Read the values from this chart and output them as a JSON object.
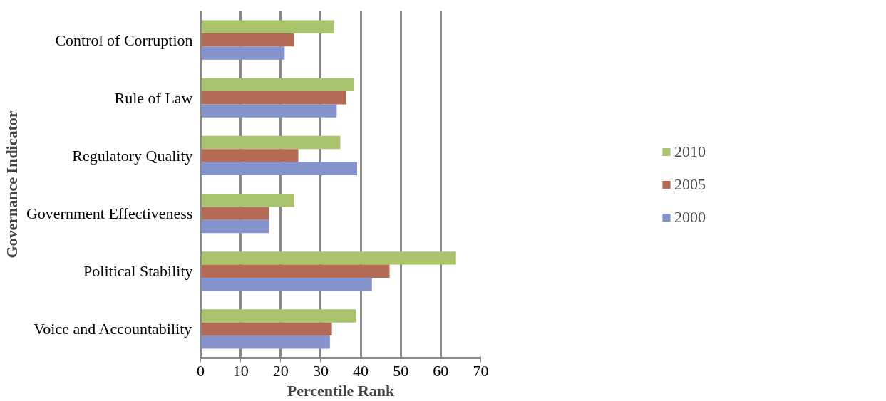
{
  "chart_data": {
    "type": "bar",
    "orientation": "horizontal",
    "xlabel": "Percentile Rank",
    "ylabel": "Governance Indicator",
    "categories": [
      "Control of Corruption",
      "Rule of Law",
      "Regulatory Quality",
      "Government Effectiveness",
      "Political Stability",
      "Voice and Accountability"
    ],
    "series": [
      {
        "name": "2010",
        "color": "#a9c46c",
        "values": [
          33.4,
          38.3,
          34.9,
          23.4,
          63.8,
          38.9
        ]
      },
      {
        "name": "2005",
        "color": "#b56a55",
        "values": [
          23.3,
          36.4,
          24.4,
          17.1,
          47.2,
          32.8
        ]
      },
      {
        "name": "2000",
        "color": "#8593cc",
        "values": [
          21.0,
          34.0,
          39.1,
          17.1,
          42.8,
          32.3
        ]
      }
    ],
    "xlim": [
      0,
      70
    ],
    "xticks": [
      0,
      10,
      20,
      30,
      40,
      50,
      60,
      70
    ],
    "grid": "x",
    "legend": "right"
  }
}
